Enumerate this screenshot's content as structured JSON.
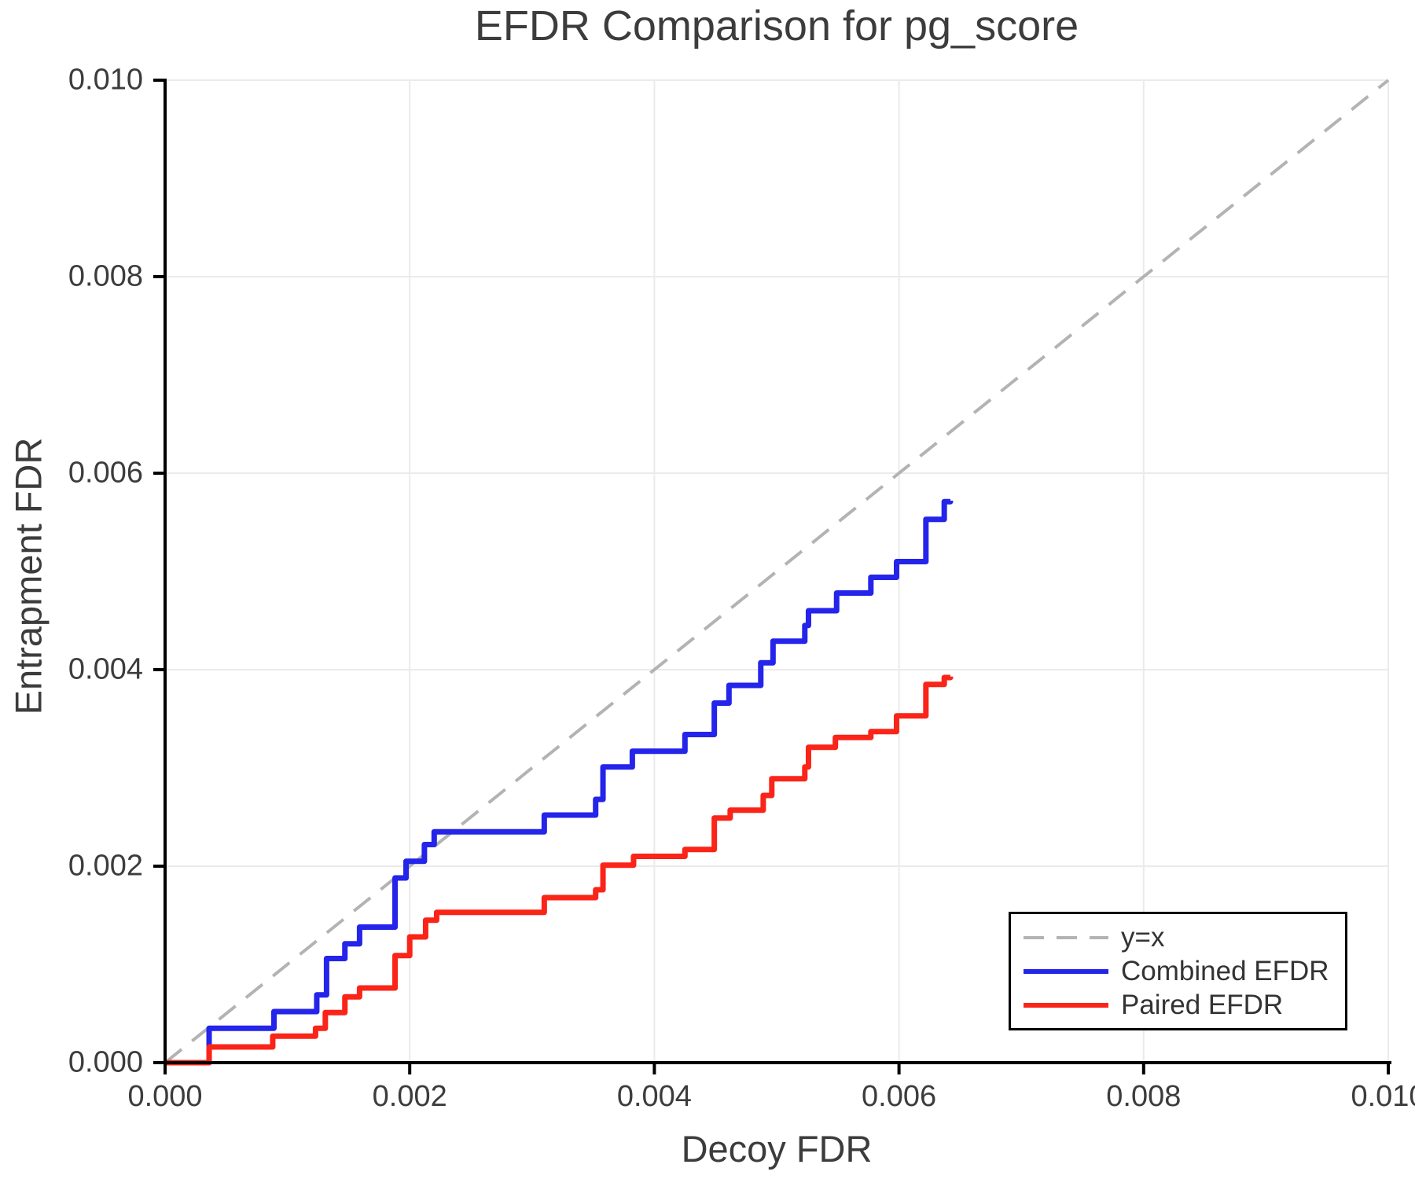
{
  "title": "EFDR Comparison for pg_score",
  "axes": {
    "xlabel": "Decoy FDR",
    "ylabel": "Entrapment FDR"
  },
  "colors": {
    "combined": "#2424ea",
    "paired": "#fa2418",
    "identity": "#b3b3b3",
    "grid": "#ebebeb",
    "spine": "#000000",
    "text": "#3c3c3c"
  },
  "chart_data": {
    "type": "line",
    "title": "EFDR Comparison for pg_score",
    "xlabel": "Decoy FDR",
    "ylabel": "Entrapment FDR",
    "xlim": [
      0.0,
      0.01
    ],
    "ylim": [
      0.0,
      0.01
    ],
    "grid": true,
    "legend_position": "lower right",
    "x_ticks": [
      0.0,
      0.002,
      0.004,
      0.006,
      0.008,
      0.01
    ],
    "x_tick_labels": [
      "0.000",
      "0.002",
      "0.004",
      "0.006",
      "0.008",
      "0.010"
    ],
    "y_ticks": [
      0.0,
      0.002,
      0.004,
      0.006,
      0.008,
      0.01
    ],
    "y_tick_labels": [
      "0.000",
      "0.002",
      "0.004",
      "0.006",
      "0.008",
      "0.010"
    ],
    "series": [
      {
        "name": "y=x",
        "color": "#b3b3b3",
        "style": "dashed",
        "points": [
          [
            0.0,
            0.0
          ],
          [
            0.01,
            0.01
          ]
        ]
      },
      {
        "name": "Combined EFDR",
        "color": "#2424ea",
        "style": "step",
        "points": [
          [
            0.0,
            0.0
          ],
          [
            0.00036,
            0.00035
          ],
          [
            0.00089,
            0.00052
          ],
          [
            0.00124,
            0.00069
          ],
          [
            0.00132,
            0.00106
          ],
          [
            0.00147,
            0.00121
          ],
          [
            0.00159,
            0.00138
          ],
          [
            0.00188,
            0.00188
          ],
          [
            0.00197,
            0.00205
          ],
          [
            0.00212,
            0.00222
          ],
          [
            0.0022,
            0.00235
          ],
          [
            0.0031,
            0.00252
          ],
          [
            0.00352,
            0.00268
          ],
          [
            0.00358,
            0.00301
          ],
          [
            0.00382,
            0.00317
          ],
          [
            0.00425,
            0.00334
          ],
          [
            0.00449,
            0.00366
          ],
          [
            0.00461,
            0.00384
          ],
          [
            0.00487,
            0.00407
          ],
          [
            0.00497,
            0.00429
          ],
          [
            0.00523,
            0.00445
          ],
          [
            0.00526,
            0.0046
          ],
          [
            0.00549,
            0.00478
          ],
          [
            0.00577,
            0.00494
          ],
          [
            0.00598,
            0.0051
          ],
          [
            0.00622,
            0.00553
          ],
          [
            0.00637,
            0.00571
          ],
          [
            0.00642,
            0.00572
          ]
        ]
      },
      {
        "name": "Paired EFDR",
        "color": "#fa2418",
        "style": "step",
        "points": [
          [
            0.0,
            0.0
          ],
          [
            0.00036,
            0.00016
          ],
          [
            0.00088,
            0.00027
          ],
          [
            0.00123,
            0.00035
          ],
          [
            0.00131,
            0.00051
          ],
          [
            0.00147,
            0.00067
          ],
          [
            0.00159,
            0.00076
          ],
          [
            0.00188,
            0.00109
          ],
          [
            0.002,
            0.00128
          ],
          [
            0.00213,
            0.00145
          ],
          [
            0.00222,
            0.00153
          ],
          [
            0.0031,
            0.00168
          ],
          [
            0.00352,
            0.00176
          ],
          [
            0.00358,
            0.00201
          ],
          [
            0.00383,
            0.0021
          ],
          [
            0.00425,
            0.00217
          ],
          [
            0.00449,
            0.00249
          ],
          [
            0.00462,
            0.00257
          ],
          [
            0.00489,
            0.00272
          ],
          [
            0.00496,
            0.00289
          ],
          [
            0.00523,
            0.00301
          ],
          [
            0.00526,
            0.00321
          ],
          [
            0.00548,
            0.00331
          ],
          [
            0.00577,
            0.00337
          ],
          [
            0.00598,
            0.00353
          ],
          [
            0.00622,
            0.00385
          ],
          [
            0.00637,
            0.00392
          ],
          [
            0.00642,
            0.00393
          ]
        ]
      }
    ]
  }
}
